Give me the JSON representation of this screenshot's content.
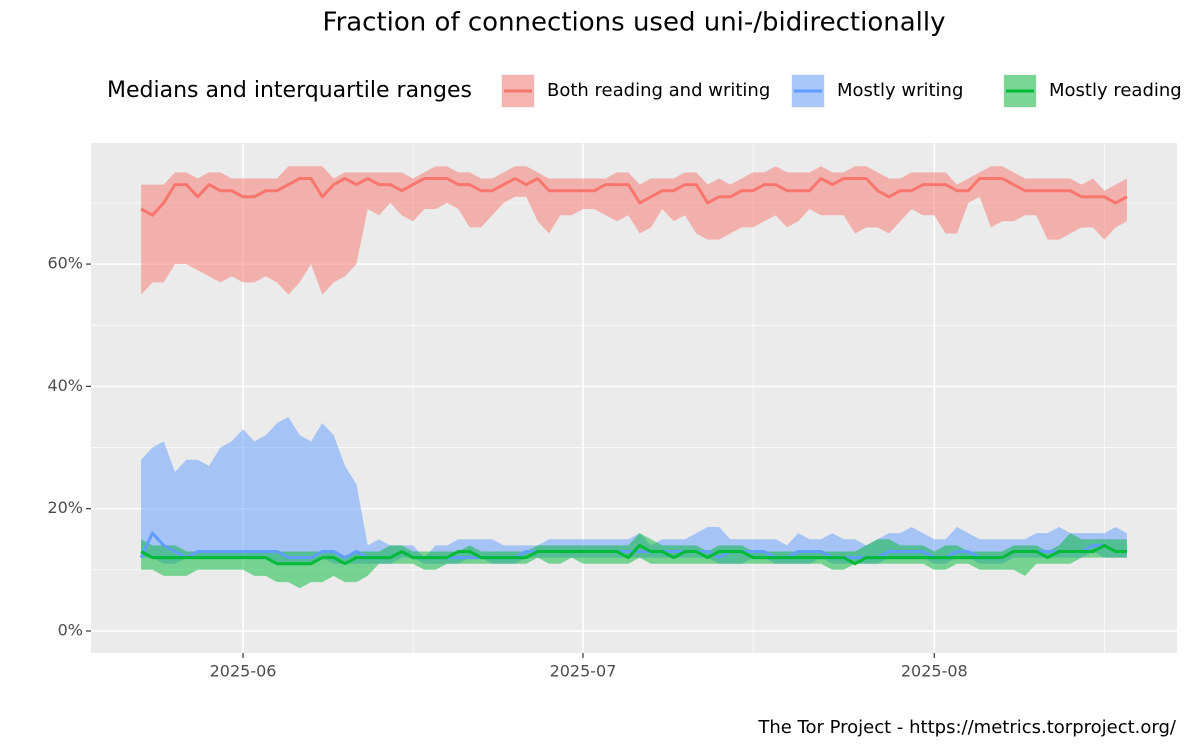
{
  "chart_data": {
    "type": "ribbon-line",
    "title": "Fraction of connections used uni-/bidirectionally",
    "legend_title": "Medians and interquartile ranges",
    "caption": "The Tor Project - https://metrics.torproject.org/",
    "x": [
      "2025-05-23",
      "2025-05-24",
      "2025-05-25",
      "2025-05-26",
      "2025-05-27",
      "2025-05-28",
      "2025-05-29",
      "2025-05-30",
      "2025-05-31",
      "2025-06-01",
      "2025-06-02",
      "2025-06-03",
      "2025-06-04",
      "2025-06-05",
      "2025-06-06",
      "2025-06-07",
      "2025-06-08",
      "2025-06-09",
      "2025-06-10",
      "2025-06-11",
      "2025-06-12",
      "2025-06-13",
      "2025-06-14",
      "2025-06-15",
      "2025-06-16",
      "2025-06-17",
      "2025-06-18",
      "2025-06-19",
      "2025-06-20",
      "2025-06-21",
      "2025-06-22",
      "2025-06-23",
      "2025-06-24",
      "2025-06-25",
      "2025-06-26",
      "2025-06-27",
      "2025-06-28",
      "2025-06-29",
      "2025-06-30",
      "2025-07-01",
      "2025-07-02",
      "2025-07-03",
      "2025-07-04",
      "2025-07-05",
      "2025-07-06",
      "2025-07-07",
      "2025-07-08",
      "2025-07-09",
      "2025-07-10",
      "2025-07-11",
      "2025-07-12",
      "2025-07-13",
      "2025-07-14",
      "2025-07-15",
      "2025-07-16",
      "2025-07-17",
      "2025-07-18",
      "2025-07-19",
      "2025-07-20",
      "2025-07-21",
      "2025-07-22",
      "2025-07-23",
      "2025-07-24",
      "2025-07-25",
      "2025-07-26",
      "2025-07-27",
      "2025-07-28",
      "2025-07-29",
      "2025-07-30",
      "2025-07-31",
      "2025-08-01",
      "2025-08-02",
      "2025-08-03",
      "2025-08-04",
      "2025-08-05",
      "2025-08-06",
      "2025-08-07",
      "2025-08-08",
      "2025-08-09",
      "2025-08-10",
      "2025-08-11",
      "2025-08-12",
      "2025-08-13",
      "2025-08-14",
      "2025-08-15",
      "2025-08-16",
      "2025-08-17",
      "2025-08-18"
    ],
    "series": [
      {
        "name": "Both reading and writing",
        "color": "#f8766d",
        "values": [
          69,
          68,
          70,
          73,
          73,
          71,
          73,
          72,
          72,
          71,
          71,
          72,
          72,
          73,
          74,
          74,
          71,
          73,
          74,
          73,
          74,
          73,
          73,
          72,
          73,
          74,
          74,
          74,
          73,
          73,
          72,
          72,
          73,
          74,
          73,
          74,
          72,
          72,
          72,
          72,
          72,
          73,
          73,
          73,
          70,
          71,
          72,
          72,
          73,
          73,
          70,
          71,
          71,
          72,
          72,
          73,
          73,
          72,
          72,
          72,
          74,
          73,
          74,
          74,
          74,
          72,
          71,
          72,
          72,
          73,
          73,
          73,
          72,
          72,
          74,
          74,
          74,
          73,
          72,
          72,
          72,
          72,
          72,
          71,
          71,
          71,
          70,
          71
        ],
        "q1": [
          55,
          57,
          57,
          60,
          60,
          59,
          58,
          57,
          58,
          57,
          57,
          58,
          57,
          55,
          57,
          60,
          55,
          57,
          58,
          60,
          69,
          68,
          70,
          68,
          67,
          69,
          69,
          70,
          69,
          66,
          66,
          68,
          70,
          71,
          71,
          67,
          65,
          68,
          68,
          69,
          69,
          68,
          67,
          68,
          65,
          66,
          69,
          67,
          68,
          65,
          64,
          64,
          65,
          66,
          66,
          67,
          68,
          66,
          67,
          69,
          68,
          68,
          68,
          65,
          66,
          66,
          65,
          67,
          69,
          68,
          68,
          65,
          65,
          70,
          71,
          66,
          67,
          67,
          68,
          68,
          64,
          64,
          65,
          66,
          66,
          64,
          66,
          67
        ],
        "q3": [
          73,
          73,
          73,
          75,
          75,
          74,
          75,
          75,
          74,
          74,
          74,
          74,
          74,
          76,
          76,
          76,
          76,
          74,
          75,
          75,
          75,
          75,
          75,
          75,
          74,
          75,
          76,
          76,
          75,
          75,
          74,
          74,
          75,
          76,
          76,
          75,
          74,
          74,
          74,
          74,
          74,
          74,
          75,
          75,
          73,
          74,
          74,
          74,
          75,
          75,
          73,
          74,
          73,
          74,
          75,
          75,
          76,
          75,
          75,
          75,
          76,
          75,
          75,
          76,
          76,
          75,
          74,
          74,
          75,
          75,
          75,
          75,
          73,
          74,
          75,
          76,
          76,
          75,
          74,
          74,
          74,
          74,
          74,
          73,
          74,
          72,
          73,
          74
        ]
      },
      {
        "name": "Mostly writing",
        "color": "#619cff",
        "values": [
          12,
          16,
          14,
          13,
          12,
          13,
          13,
          13,
          13,
          13,
          13,
          13,
          13,
          12,
          12,
          12,
          13,
          13,
          12,
          13,
          12,
          12,
          12,
          13,
          12,
          12,
          12,
          12,
          12,
          12,
          12,
          12,
          12,
          12,
          13,
          13,
          13,
          13,
          13,
          13,
          13,
          13,
          13,
          13,
          13,
          13,
          13,
          13,
          13,
          13,
          13,
          12,
          13,
          13,
          13,
          13,
          12,
          12,
          13,
          13,
          13,
          12,
          12,
          12,
          12,
          12,
          13,
          13,
          13,
          13,
          12,
          12,
          13,
          13,
          12,
          12,
          12,
          13,
          13,
          13,
          13,
          13,
          13,
          13,
          14,
          14,
          13,
          13
        ],
        "q1": [
          12,
          12,
          11,
          11,
          12,
          12,
          12,
          12,
          12,
          12,
          12,
          12,
          11,
          11,
          11,
          11,
          12,
          11,
          11,
          11,
          11,
          11,
          11,
          12,
          12,
          11,
          11,
          11,
          11,
          12,
          12,
          11,
          11,
          11,
          12,
          12,
          12,
          12,
          12,
          12,
          12,
          12,
          12,
          12,
          12,
          12,
          12,
          12,
          12,
          12,
          12,
          11,
          11,
          11,
          12,
          12,
          11,
          11,
          11,
          11,
          12,
          11,
          11,
          11,
          11,
          11,
          12,
          12,
          12,
          12,
          11,
          11,
          12,
          12,
          11,
          11,
          11,
          12,
          12,
          12,
          12,
          12,
          12,
          12,
          13,
          12,
          12,
          12
        ],
        "q3": [
          28,
          30,
          31,
          26,
          28,
          28,
          27,
          30,
          31,
          33,
          31,
          32,
          34,
          35,
          32,
          31,
          34,
          32,
          27,
          24,
          14,
          15,
          14,
          14,
          14,
          12,
          14,
          14,
          15,
          15,
          15,
          15,
          14,
          14,
          14,
          14,
          15,
          15,
          15,
          15,
          15,
          15,
          15,
          15,
          16,
          14,
          15,
          15,
          15,
          16,
          17,
          17,
          15,
          15,
          15,
          15,
          15,
          14,
          16,
          15,
          15,
          16,
          15,
          15,
          14,
          15,
          16,
          16,
          17,
          16,
          15,
          15,
          17,
          16,
          15,
          15,
          15,
          15,
          15,
          16,
          16,
          17,
          16,
          16,
          16,
          16,
          17,
          16
        ]
      },
      {
        "name": "Mostly reading",
        "color": "#00ba38",
        "values": [
          13,
          12,
          12,
          12,
          12,
          12,
          12,
          12,
          12,
          12,
          12,
          12,
          11,
          11,
          11,
          11,
          12,
          12,
          11,
          12,
          12,
          12,
          12,
          13,
          12,
          12,
          12,
          12,
          13,
          13,
          12,
          12,
          12,
          12,
          12,
          13,
          13,
          13,
          13,
          13,
          13,
          13,
          13,
          12,
          14,
          13,
          13,
          12,
          13,
          13,
          12,
          13,
          13,
          13,
          12,
          12,
          12,
          12,
          12,
          12,
          12,
          12,
          12,
          11,
          12,
          12,
          12,
          12,
          12,
          12,
          12,
          12,
          12,
          12,
          12,
          12,
          12,
          13,
          13,
          13,
          12,
          13,
          13,
          13,
          13,
          14,
          13,
          13
        ],
        "q1": [
          10,
          10,
          9,
          9,
          9,
          10,
          10,
          10,
          10,
          10,
          9,
          9,
          8,
          8,
          7,
          8,
          8,
          9,
          8,
          8,
          9,
          11,
          11,
          11,
          11,
          10,
          10,
          11,
          11,
          11,
          11,
          11,
          11,
          11,
          11,
          12,
          11,
          11,
          12,
          11,
          11,
          11,
          11,
          11,
          12,
          11,
          11,
          11,
          11,
          11,
          11,
          11,
          11,
          11,
          11,
          11,
          11,
          11,
          11,
          11,
          11,
          10,
          10,
          11,
          11,
          11,
          11,
          11,
          11,
          11,
          10,
          10,
          11,
          11,
          10,
          10,
          10,
          10,
          9,
          11,
          11,
          11,
          11,
          12,
          12,
          12,
          12,
          12
        ],
        "q3": [
          15,
          14,
          14,
          14,
          13,
          13,
          13,
          13,
          13,
          13,
          13,
          13,
          13,
          13,
          13,
          13,
          13,
          13,
          12,
          13,
          13,
          13,
          14,
          14,
          13,
          13,
          13,
          13,
          13,
          14,
          13,
          13,
          13,
          13,
          13,
          14,
          14,
          14,
          14,
          14,
          14,
          14,
          14,
          14,
          16,
          15,
          14,
          14,
          14,
          14,
          13,
          14,
          14,
          14,
          13,
          13,
          13,
          13,
          13,
          13,
          13,
          13,
          13,
          13,
          14,
          15,
          15,
          14,
          14,
          14,
          13,
          14,
          14,
          13,
          13,
          13,
          13,
          14,
          14,
          14,
          13,
          14,
          16,
          15,
          15,
          15,
          15,
          15
        ]
      }
    ],
    "xlim": [
      "2025-05-18T14:00",
      "2025-08-22T10:00"
    ],
    "xticks": [
      {
        "value": "2025-06-01",
        "label": "2025-06"
      },
      {
        "value": "2025-07-01",
        "label": "2025-07"
      },
      {
        "value": "2025-08-01",
        "label": "2025-08"
      }
    ],
    "x_minor_ticks": [
      "2025-06-16",
      "2025-07-16",
      "2025-08-16"
    ],
    "ylim": [
      -3.6,
      79.8
    ],
    "yticks": [
      {
        "value": 0,
        "label": "0%"
      },
      {
        "value": 20,
        "label": "20%"
      },
      {
        "value": 40,
        "label": "40%"
      },
      {
        "value": 60,
        "label": "60%"
      }
    ],
    "y_minor_ticks": [
      10,
      30,
      50,
      70
    ],
    "grid": true,
    "legend_position": "top"
  }
}
